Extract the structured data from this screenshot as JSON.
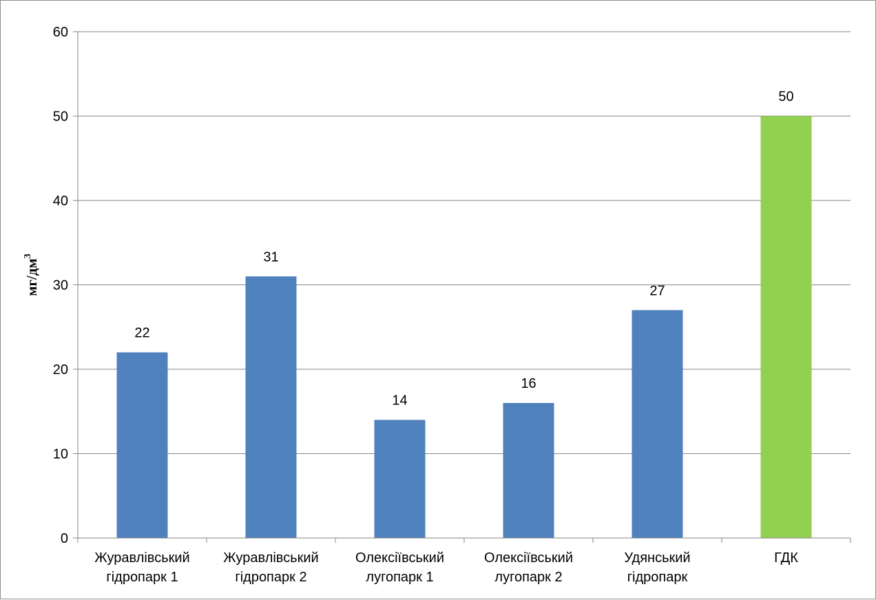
{
  "chart_data": {
    "type": "bar",
    "title": "",
    "xlabel": "",
    "ylabel": "мг/дм",
    "ylabel_superscript": "3",
    "categories": [
      [
        "Журавлівський",
        "гідропарк 1"
      ],
      [
        "Журавлівський",
        "гідропарк 2"
      ],
      [
        "Олексіївський",
        "лугопарк 1"
      ],
      [
        "Олексіївський",
        "лугопарк 2"
      ],
      [
        "Удянський",
        "гідропарк"
      ],
      [
        "ГДК"
      ]
    ],
    "values": [
      22,
      31,
      14,
      16,
      27,
      50
    ],
    "bar_colors": [
      "#4f81bd",
      "#4f81bd",
      "#4f81bd",
      "#4f81bd",
      "#4f81bd",
      "#92d050"
    ],
    "ylim": [
      0,
      60
    ],
    "yticks": [
      0,
      10,
      20,
      30,
      40,
      50,
      60
    ],
    "data_labels": true,
    "grid": true,
    "legend": "none",
    "colors": {
      "bar": "#4f81bd",
      "highlight_bar": "#92d050",
      "grid": "#868686",
      "axis": "#868686"
    }
  }
}
